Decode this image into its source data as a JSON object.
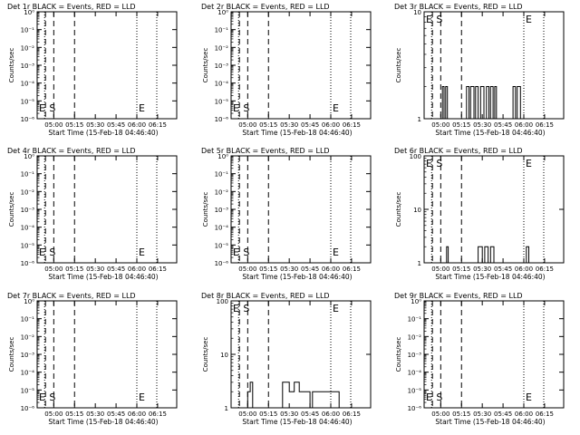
{
  "xlabel": "Start Time (15-Feb-18 04:46:40)",
  "ylabel": "Counts/sec",
  "x_ticks": [
    "05:00",
    "05:15",
    "05:30",
    "05:45",
    "06:00",
    "06:15"
  ],
  "markers": {
    "start": "S",
    "end": "E",
    "edge": "E"
  },
  "chart_data": [
    {
      "type": "line",
      "title": "Det 1r BLACK = Events, RED = LLD",
      "y_scale": "log",
      "ylim": [
        1e-06,
        1
      ],
      "y_ticks": [
        "10⁻⁶",
        "10⁻⁵",
        "10⁻⁴",
        "10⁻³",
        "10⁻²",
        "10⁻¹",
        "10⁰"
      ],
      "series": [
        {
          "values": []
        }
      ]
    },
    {
      "type": "line",
      "title": "Det 2r BLACK = Events, RED = LLD",
      "y_scale": "log",
      "ylim": [
        1e-06,
        1
      ],
      "y_ticks": [
        "10⁻⁶",
        "10⁻⁵",
        "10⁻⁴",
        "10⁻³",
        "10⁻²",
        "10⁻¹",
        "10⁰"
      ],
      "series": [
        {
          "values": []
        }
      ]
    },
    {
      "type": "line",
      "title": "Det 3r BLACK = Events, RED = LLD",
      "y_scale": "log",
      "ylim": [
        1,
        10
      ],
      "y_ticks": [
        "1",
        "10"
      ],
      "series": [
        {
          "values": [
            [
              5.02,
              1
            ],
            [
              5.02,
              2
            ],
            [
              5.04,
              2
            ],
            [
              5.04,
              1
            ],
            [
              5.06,
              1
            ],
            [
              5.06,
              2
            ],
            [
              5.08,
              2
            ],
            [
              5.08,
              1
            ],
            [
              5.31,
              1
            ],
            [
              5.31,
              2
            ],
            [
              5.34,
              2
            ],
            [
              5.34,
              1
            ],
            [
              5.36,
              1
            ],
            [
              5.36,
              2
            ],
            [
              5.4,
              2
            ],
            [
              5.4,
              1
            ],
            [
              5.42,
              1
            ],
            [
              5.42,
              2
            ],
            [
              5.45,
              2
            ],
            [
              5.45,
              1
            ],
            [
              5.48,
              1
            ],
            [
              5.48,
              2
            ],
            [
              5.52,
              2
            ],
            [
              5.52,
              1
            ],
            [
              5.55,
              1
            ],
            [
              5.55,
              2
            ],
            [
              5.58,
              2
            ],
            [
              5.58,
              1
            ],
            [
              5.6,
              1
            ],
            [
              5.6,
              2
            ],
            [
              5.63,
              2
            ],
            [
              5.63,
              1
            ],
            [
              5.65,
              1
            ],
            [
              5.65,
              2
            ],
            [
              5.67,
              2
            ],
            [
              5.67,
              1
            ],
            [
              5.87,
              1
            ],
            [
              5.87,
              2
            ],
            [
              5.9,
              2
            ],
            [
              5.9,
              1
            ],
            [
              5.92,
              1
            ],
            [
              5.92,
              2
            ],
            [
              5.96,
              2
            ],
            [
              5.96,
              1
            ]
          ]
        }
      ]
    },
    {
      "type": "line",
      "title": "Det 4r BLACK = Events, RED = LLD",
      "y_scale": "log",
      "ylim": [
        1e-06,
        1
      ],
      "y_ticks": [
        "10⁻⁶",
        "10⁻⁵",
        "10⁻⁴",
        "10⁻³",
        "10⁻²",
        "10⁻¹",
        "10⁰"
      ],
      "series": [
        {
          "values": []
        }
      ]
    },
    {
      "type": "line",
      "title": "Det 5r BLACK = Events, RED = LLD",
      "y_scale": "log",
      "ylim": [
        1e-06,
        1
      ],
      "y_ticks": [
        "10⁻⁶",
        "10⁻⁵",
        "10⁻⁴",
        "10⁻³",
        "10⁻²",
        "10⁻¹",
        "10⁰"
      ],
      "series": [
        {
          "values": []
        }
      ]
    },
    {
      "type": "line",
      "title": "Det 6r BLACK = Events, RED = LLD",
      "y_scale": "log",
      "ylim": [
        1,
        100
      ],
      "y_ticks": [
        "1",
        "10",
        "100"
      ],
      "series": [
        {
          "values": [
            [
              5.07,
              1
            ],
            [
              5.07,
              2
            ],
            [
              5.09,
              2
            ],
            [
              5.09,
              1
            ],
            [
              5.45,
              1
            ],
            [
              5.45,
              2
            ],
            [
              5.5,
              2
            ],
            [
              5.5,
              1
            ],
            [
              5.53,
              1
            ],
            [
              5.53,
              2
            ],
            [
              5.57,
              2
            ],
            [
              5.57,
              1
            ],
            [
              5.6,
              1
            ],
            [
              5.6,
              2
            ],
            [
              5.64,
              2
            ],
            [
              5.64,
              1
            ],
            [
              6.03,
              1
            ],
            [
              6.03,
              2
            ],
            [
              6.06,
              2
            ],
            [
              6.06,
              1
            ]
          ]
        }
      ]
    },
    {
      "type": "line",
      "title": "Det 7r BLACK = Events, RED = LLD",
      "y_scale": "log",
      "ylim": [
        1e-06,
        1
      ],
      "y_ticks": [
        "10⁻⁶",
        "10⁻⁵",
        "10⁻⁴",
        "10⁻³",
        "10⁻²",
        "10⁻¹",
        "10⁰"
      ],
      "series": [
        {
          "values": []
        }
      ]
    },
    {
      "type": "line",
      "title": "Det 8r BLACK = Events, RED = LLD",
      "y_scale": "log",
      "ylim": [
        1,
        100
      ],
      "y_ticks": [
        "1",
        "10",
        "100"
      ],
      "series": [
        {
          "values": [
            [
              5.0,
              1
            ],
            [
              5.0,
              2
            ],
            [
              5.03,
              2
            ],
            [
              5.03,
              3
            ],
            [
              5.06,
              3
            ],
            [
              5.06,
              1
            ],
            [
              5.42,
              1
            ],
            [
              5.42,
              3
            ],
            [
              5.5,
              3
            ],
            [
              5.5,
              2
            ],
            [
              5.56,
              2
            ],
            [
              5.56,
              3
            ],
            [
              5.62,
              3
            ],
            [
              5.62,
              2
            ],
            [
              5.75,
              2
            ],
            [
              5.75,
              1
            ],
            [
              5.78,
              1
            ],
            [
              5.78,
              2
            ],
            [
              6.1,
              2
            ],
            [
              6.1,
              1
            ]
          ]
        }
      ]
    },
    {
      "type": "line",
      "title": "Det 9r BLACK = Events, RED = LLD",
      "y_scale": "log",
      "ylim": [
        1e-06,
        1
      ],
      "y_ticks": [
        "10⁻⁶",
        "10⁻⁵",
        "10⁻⁴",
        "10⁻³",
        "10⁻²",
        "10⁻¹",
        "10⁰"
      ],
      "series": [
        {
          "values": []
        }
      ]
    }
  ]
}
